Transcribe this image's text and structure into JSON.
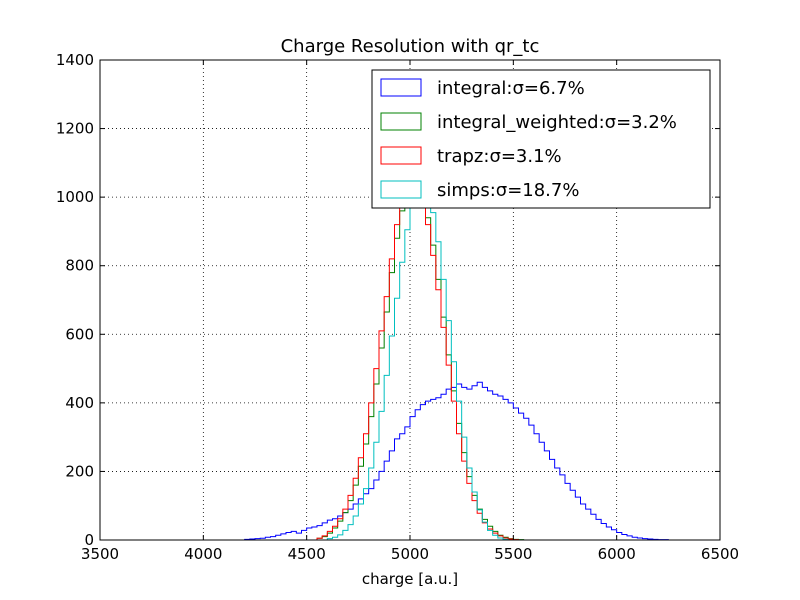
{
  "chart_data": {
    "type": "histogram",
    "title": "Charge Resolution with qr_tc",
    "xlabel": "charge [a.u.]",
    "ylabel": "",
    "xlim": [
      3500,
      6500
    ],
    "ylim": [
      0,
      1400
    ],
    "xticks": [
      3500,
      4000,
      4500,
      5000,
      5500,
      6000,
      6500
    ],
    "yticks": [
      0,
      200,
      400,
      600,
      800,
      1000,
      1200,
      1400
    ],
    "xtick_labels": [
      "3500",
      "4000",
      "4500",
      "5000",
      "5500",
      "6000",
      "6500"
    ],
    "ytick_labels": [
      "0",
      "200",
      "400",
      "600",
      "800",
      "1000",
      "1200",
      "1400"
    ],
    "grid": true,
    "legend_position": "upper-right",
    "bin_width": 25,
    "series": [
      {
        "name": "integral:",
        "sigma_label": "σ=6.7%",
        "color": "#0000ff",
        "bin_start": 4200,
        "values": [
          2,
          3,
          4,
          5,
          8,
          10,
          14,
          18,
          22,
          25,
          20,
          28,
          35,
          38,
          42,
          50,
          58,
          62,
          70,
          80,
          90,
          105,
          120,
          135,
          150,
          175,
          200,
          230,
          260,
          295,
          310,
          330,
          360,
          380,
          395,
          405,
          410,
          415,
          425,
          440,
          445,
          455,
          445,
          440,
          450,
          460,
          445,
          435,
          425,
          420,
          410,
          400,
          385,
          370,
          355,
          335,
          310,
          285,
          260,
          235,
          210,
          190,
          165,
          145,
          125,
          105,
          90,
          75,
          60,
          48,
          38,
          30,
          22,
          16,
          12,
          8,
          6,
          4,
          3,
          2,
          1,
          1,
          0
        ]
      },
      {
        "name": "integral_weighted:",
        "sigma_label": "σ=3.2%",
        "color": "#008000",
        "bin_start": 4550,
        "values": [
          5,
          10,
          20,
          35,
          55,
          80,
          115,
          160,
          215,
          280,
          360,
          455,
          560,
          665,
          780,
          880,
          960,
          1010,
          1040,
          1035,
          1000,
          940,
          860,
          760,
          650,
          540,
          435,
          340,
          255,
          185,
          130,
          90,
          60,
          40,
          25,
          14,
          8,
          4,
          2,
          1,
          0
        ]
      },
      {
        "name": "trapz:",
        "sigma_label": "σ=3.1%",
        "color": "#ff0000",
        "bin_start": 4550,
        "values": [
          5,
          12,
          25,
          40,
          62,
          90,
          130,
          180,
          240,
          310,
          400,
          500,
          610,
          710,
          820,
          920,
          990,
          1030,
          1045,
          1030,
          990,
          920,
          830,
          730,
          620,
          510,
          405,
          310,
          230,
          165,
          115,
          78,
          50,
          32,
          20,
          12,
          6,
          3,
          1,
          0,
          0
        ]
      },
      {
        "name": "simps:",
        "sigma_label": "σ=18.7%",
        "color": "#00bfbf",
        "bin_start": 4600,
        "values": [
          4,
          8,
          15,
          28,
          45,
          70,
          105,
          150,
          210,
          285,
          375,
          480,
          595,
          705,
          810,
          905,
          975,
          1020,
          1035,
          1010,
          955,
          870,
          760,
          640,
          520,
          405,
          300,
          210,
          140,
          88,
          52,
          28,
          14,
          6,
          2,
          0
        ]
      }
    ]
  }
}
